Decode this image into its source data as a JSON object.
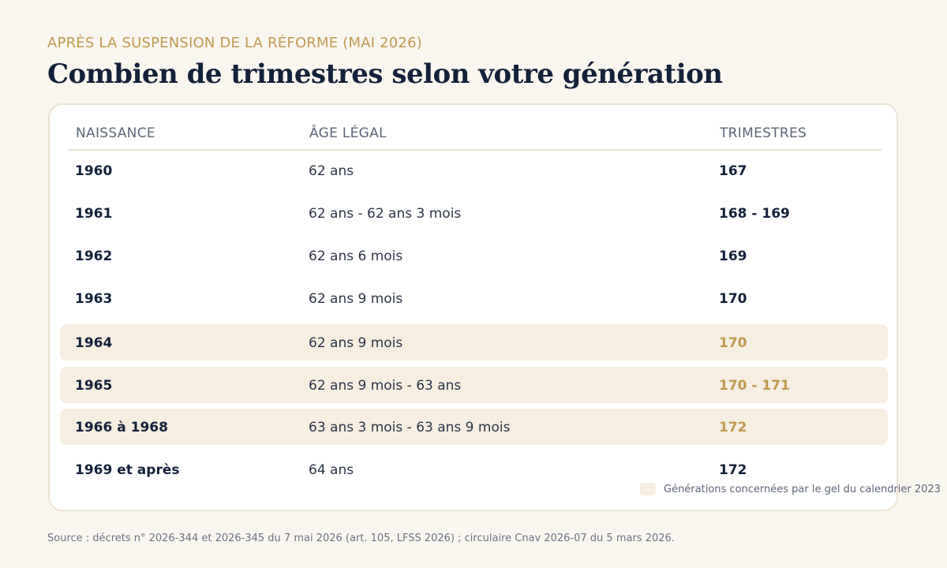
{
  "header": {
    "kicker": "APRÈS LA SUSPENSION DE LA RÉFORME (MAI 2026)",
    "title": "Combien de trimestres selon votre génération"
  },
  "table": {
    "columns": [
      "NAISSANCE",
      "ÂGE LÉGAL",
      "TRIMESTRES"
    ],
    "rows": [
      {
        "naissance": "1960",
        "age": "62 ans",
        "trimestres": "167",
        "highlighted": false
      },
      {
        "naissance": "1961",
        "age": "62 ans - 62 ans 3 mois",
        "trimestres": "168 - 169",
        "highlighted": false
      },
      {
        "naissance": "1962",
        "age": "62 ans 6 mois",
        "trimestres": "169",
        "highlighted": false
      },
      {
        "naissance": "1963",
        "age": "62 ans 9 mois",
        "trimestres": "170",
        "highlighted": false
      },
      {
        "naissance": "1964",
        "age": "62 ans 9 mois",
        "trimestres": "170",
        "highlighted": true
      },
      {
        "naissance": "1965",
        "age": "62 ans 9 mois - 63 ans",
        "trimestres": "170 - 171",
        "highlighted": true
      },
      {
        "naissance": "1966 à 1968",
        "age": "63 ans 3 mois - 63 ans 9 mois",
        "trimestres": "172",
        "highlighted": true
      },
      {
        "naissance": "1969 et après",
        "age": "64 ans",
        "trimestres": "172",
        "highlighted": false
      }
    ]
  },
  "legend": {
    "text": "Générations concernées par le gel du calendrier 2023"
  },
  "source": "Source : décrets n° 2026-344 et 2026-345 du 7 mai 2026 (art. 105, LFSS 2026) ; circulaire Cnav 2026-07 du 5 mars 2026.",
  "colors": {
    "accent": "#c09a4f",
    "highlight": "#f5eee1",
    "ink": "#14213a",
    "background": "#f9f6ef"
  }
}
